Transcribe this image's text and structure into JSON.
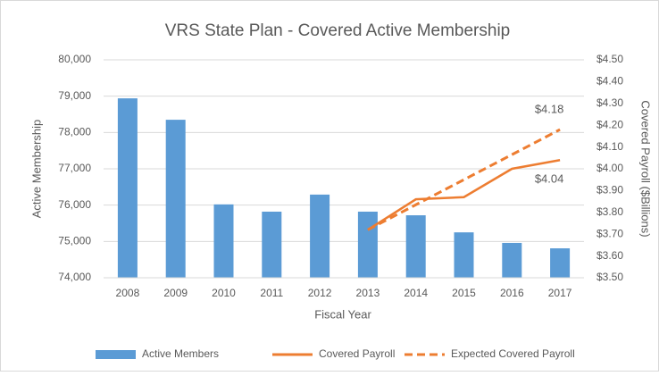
{
  "chart_data": {
    "type": "bar",
    "title": "VRS State Plan - Covered Active Membership",
    "xlabel": "Fiscal Year",
    "ylabel": "Active Membership",
    "y2label": "Covered Payroll ($Billions)",
    "categories": [
      "2008",
      "2009",
      "2010",
      "2011",
      "2012",
      "2013",
      "2014",
      "2015",
      "2016",
      "2017"
    ],
    "series": [
      {
        "name": "Active Members",
        "type": "bar",
        "color": "#5b9bd5",
        "values": [
          78940,
          78350,
          76020,
          75820,
          76290,
          75820,
          75720,
          75250,
          74960,
          74810
        ]
      },
      {
        "name": "Covered Payroll",
        "type": "line",
        "axis": "y2",
        "color": "#ed7d31",
        "dashed": false,
        "values": [
          null,
          null,
          null,
          null,
          null,
          3.72,
          3.86,
          3.87,
          4.0,
          4.04
        ],
        "value_labels": [
          null,
          null,
          null,
          null,
          null,
          null,
          null,
          null,
          null,
          "$4.04"
        ]
      },
      {
        "name": "Expected Covered Payroll",
        "type": "line",
        "axis": "y2",
        "color": "#ed7d31",
        "dashed": true,
        "values": [
          null,
          null,
          null,
          null,
          null,
          3.72,
          3.835,
          3.95,
          4.065,
          4.18
        ],
        "value_labels": [
          null,
          null,
          null,
          null,
          null,
          null,
          null,
          null,
          null,
          "$4.18"
        ]
      }
    ],
    "ylim": [
      74000,
      80000
    ],
    "yticks": [
      {
        "value": 74000,
        "label": "74,000"
      },
      {
        "value": 75000,
        "label": "75,000"
      },
      {
        "value": 76000,
        "label": "76,000"
      },
      {
        "value": 77000,
        "label": "77,000"
      },
      {
        "value": 78000,
        "label": "78,000"
      },
      {
        "value": 79000,
        "label": "79,000"
      },
      {
        "value": 80000,
        "label": "80,000"
      }
    ],
    "y2lim": [
      3.5,
      4.5
    ],
    "y2ticks": [
      {
        "value": 3.5,
        "label": "$3.50"
      },
      {
        "value": 3.6,
        "label": "$3.60"
      },
      {
        "value": 3.7,
        "label": "$3.70"
      },
      {
        "value": 3.8,
        "label": "$3.80"
      },
      {
        "value": 3.9,
        "label": "$3.90"
      },
      {
        "value": 4.0,
        "label": "$4.00"
      },
      {
        "value": 4.1,
        "label": "$4.10"
      },
      {
        "value": 4.2,
        "label": "$4.20"
      },
      {
        "value": 4.3,
        "label": "$4.30"
      },
      {
        "value": 4.4,
        "label": "$4.40"
      },
      {
        "value": 4.5,
        "label": "$4.50"
      }
    ],
    "grid": true,
    "legend": "bottom"
  }
}
